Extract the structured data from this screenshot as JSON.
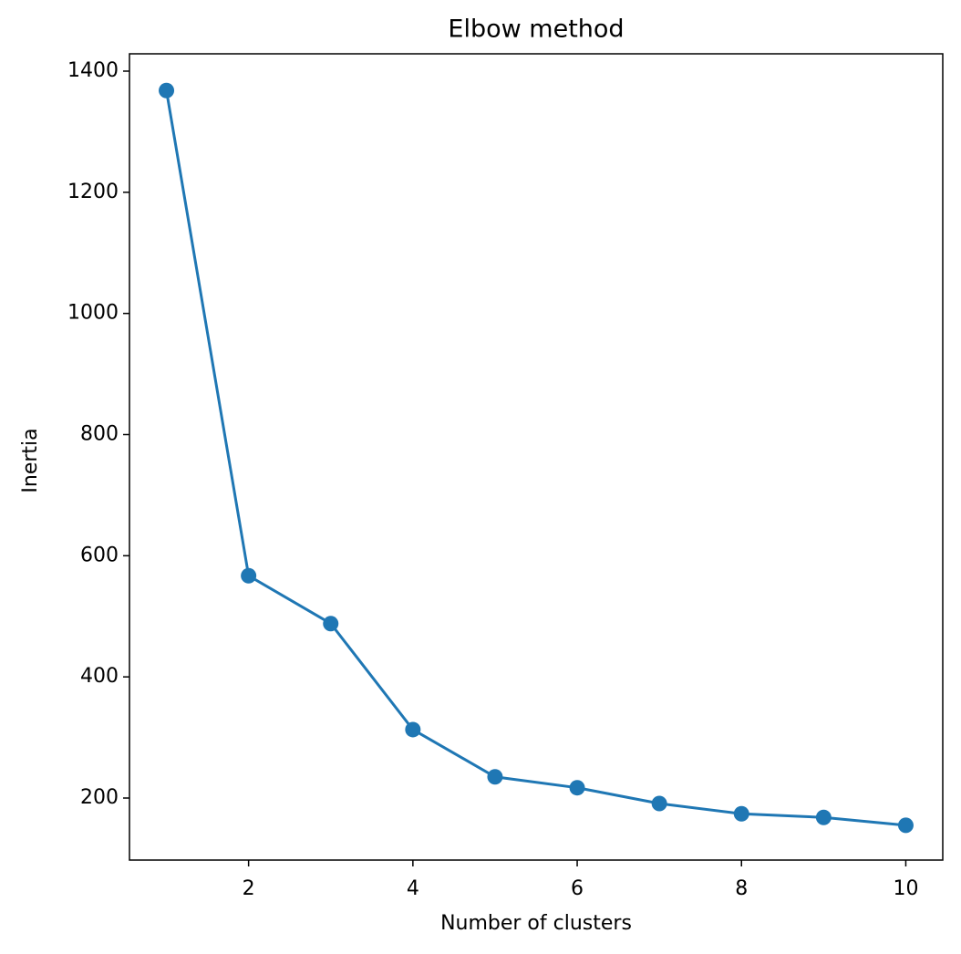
{
  "chart_data": {
    "type": "line",
    "title": "Elbow method",
    "x_label": "Number of clusters",
    "y_label": "Inertia",
    "x": [
      1,
      2,
      3,
      4,
      5,
      6,
      7,
      8,
      9,
      10
    ],
    "series": [
      {
        "color": "#1f77b4",
        "values": [
          1368,
          567,
          488,
          313,
          235,
          217,
          191,
          174,
          168,
          155
        ]
      }
    ],
    "xlim": [
      0.55,
      10.45
    ],
    "xticks": [
      2,
      4,
      6,
      8,
      10
    ],
    "ylim": [
      97.6,
      1428.6
    ],
    "yticks": [
      200,
      400,
      600,
      800,
      1000,
      1200,
      1400
    ],
    "grid": false,
    "marker": "circle"
  }
}
